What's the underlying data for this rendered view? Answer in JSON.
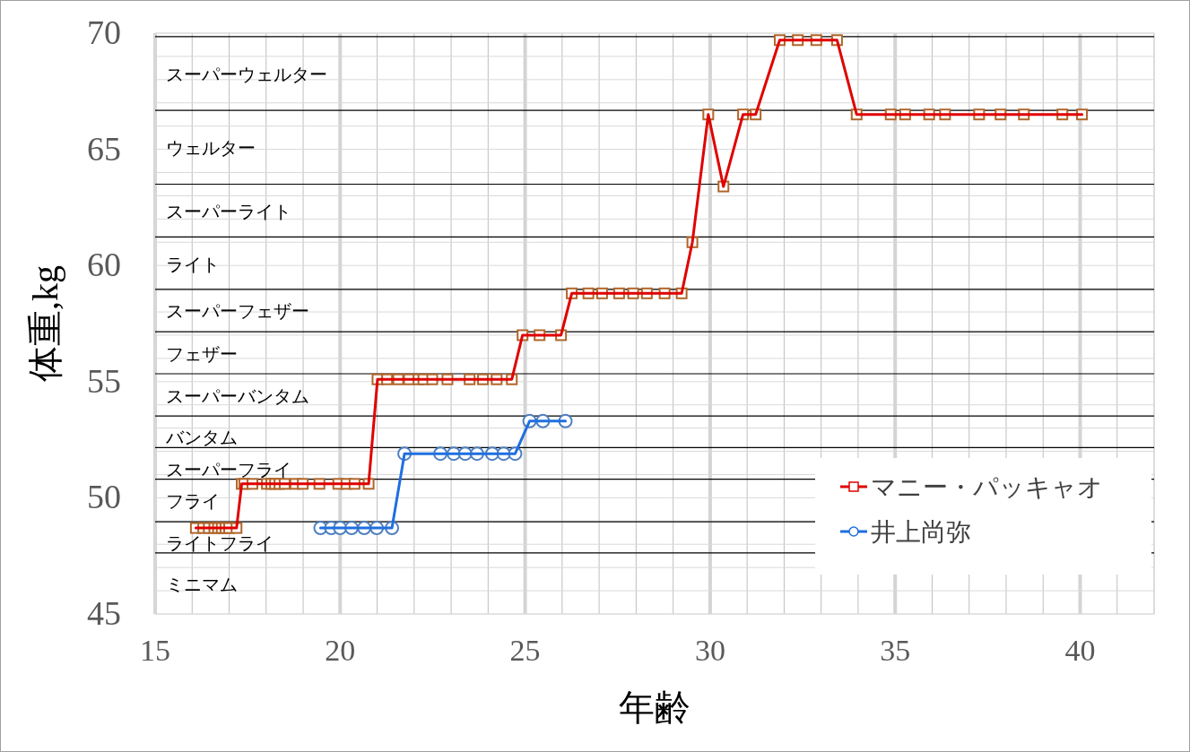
{
  "chart_data": {
    "type": "line",
    "xlabel": "年齢",
    "ylabel": "体重,kg",
    "xlim": [
      15,
      42
    ],
    "ylim": [
      45,
      70
    ],
    "xticks": [
      15,
      20,
      25,
      30,
      35,
      40
    ],
    "yticks": [
      45,
      50,
      55,
      60,
      65,
      70
    ],
    "grid": true,
    "legend": "bottom right",
    "line_style": "solid",
    "ref_lines": [
      {
        "axis": "y",
        "value": 47.63,
        "label": "ミニマム"
      },
      {
        "axis": "y",
        "value": 48.97,
        "label": "ライトフライ"
      },
      {
        "axis": "y",
        "value": 50.8,
        "label": "フライ"
      },
      {
        "axis": "y",
        "value": 52.16,
        "label": "スーパーフライ"
      },
      {
        "axis": "y",
        "value": 53.52,
        "label": "バンタム"
      },
      {
        "axis": "y",
        "value": 55.34,
        "label": "スーパーバンタム"
      },
      {
        "axis": "y",
        "value": 57.15,
        "label": "フェザー"
      },
      {
        "axis": "y",
        "value": 58.97,
        "label": "スーパーフェザー"
      },
      {
        "axis": "y",
        "value": 61.23,
        "label": "ライト"
      },
      {
        "axis": "y",
        "value": 63.5,
        "label": "スーパーライト"
      },
      {
        "axis": "y",
        "value": 66.68,
        "label": "ウェルター"
      },
      {
        "axis": "y",
        "value": 69.85,
        "label": "スーパーウェルター"
      }
    ],
    "series": [
      {
        "name": "マニー・パッキャオ",
        "color": "#e00000",
        "marker": "square",
        "x": [
          16.1,
          16.3,
          16.45,
          16.6,
          16.7,
          16.8,
          16.9,
          17.0,
          17.2,
          17.34,
          17.41,
          17.63,
          18.02,
          18.14,
          18.24,
          18.36,
          18.5,
          18.79,
          18.99,
          19.44,
          19.95,
          20.17,
          20.39,
          20.77,
          21.01,
          21.27,
          21.57,
          21.86,
          22.12,
          22.25,
          22.49,
          22.9,
          23.5,
          23.86,
          24.23,
          24.64,
          24.93,
          25.39,
          25.97,
          26.26,
          26.71,
          27.08,
          27.54,
          27.92,
          28.29,
          28.77,
          29.23,
          29.52,
          29.95,
          30.36,
          30.89,
          31.23,
          31.88,
          32.37,
          32.87,
          33.43,
          33.96,
          34.88,
          35.27,
          35.92,
          36.35,
          37.27,
          37.85,
          38.48,
          39.52,
          40.05
        ],
        "values": [
          48.7,
          48.7,
          48.7,
          48.7,
          48.7,
          48.7,
          48.7,
          48.7,
          48.7,
          50.6,
          50.6,
          50.6,
          50.6,
          50.6,
          50.6,
          50.6,
          50.6,
          50.6,
          50.6,
          50.6,
          50.6,
          50.6,
          50.6,
          50.6,
          55.1,
          55.1,
          55.1,
          55.1,
          55.1,
          55.1,
          55.1,
          55.1,
          55.1,
          55.1,
          55.1,
          55.1,
          57.0,
          57.0,
          57.0,
          58.8,
          58.8,
          58.8,
          58.8,
          58.8,
          58.8,
          58.8,
          58.8,
          61.0,
          66.5,
          63.4,
          66.5,
          66.5,
          69.7,
          69.7,
          69.7,
          69.7,
          66.5,
          66.5,
          66.5,
          66.5,
          66.5,
          66.5,
          66.5,
          66.5,
          66.5,
          66.5
        ]
      },
      {
        "name": "井上尚弥",
        "color": "#1f6fe0",
        "marker": "circle",
        "x": [
          19.47,
          19.76,
          20.0,
          20.31,
          20.65,
          20.99,
          21.4,
          21.74,
          22.71,
          23.07,
          23.38,
          23.7,
          24.11,
          24.42,
          24.73,
          25.12,
          25.48,
          26.09
        ],
        "values": [
          48.7,
          48.7,
          48.7,
          48.7,
          48.7,
          48.7,
          48.7,
          51.9,
          51.9,
          51.9,
          51.9,
          51.9,
          51.9,
          51.9,
          51.9,
          53.3,
          53.3,
          53.3
        ]
      }
    ]
  }
}
